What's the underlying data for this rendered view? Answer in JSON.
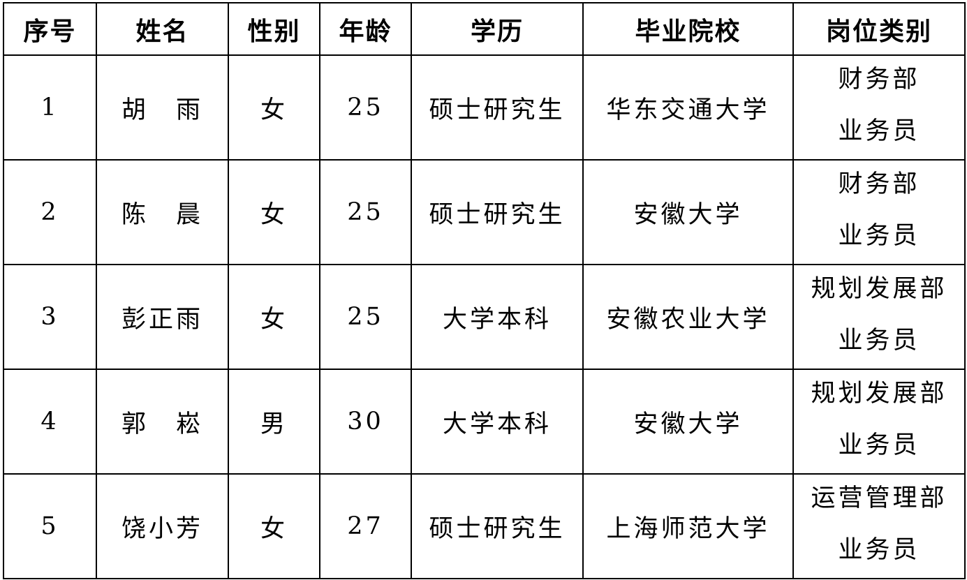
{
  "table": {
    "headers": [
      "序号",
      "姓名",
      "性别",
      "年龄",
      "学历",
      "毕业院校",
      "岗位类别"
    ],
    "rows": [
      {
        "no": "1",
        "name": "胡　雨",
        "gender": "女",
        "age": "25",
        "education": "硕士研究生",
        "school": "华东交通大学",
        "job": [
          "财务部",
          "业务员"
        ]
      },
      {
        "no": "2",
        "name": "陈　晨",
        "gender": "女",
        "age": "25",
        "education": "硕士研究生",
        "school": "安徽大学",
        "job": [
          "财务部",
          "业务员"
        ]
      },
      {
        "no": "3",
        "name": "彭正雨",
        "gender": "女",
        "age": "25",
        "education": "大学本科",
        "school": "安徽农业大学",
        "job": [
          "规划发展部",
          "业务员"
        ]
      },
      {
        "no": "4",
        "name": "郭　崧",
        "gender": "男",
        "age": "30",
        "education": "大学本科",
        "school": "安徽大学",
        "job": [
          "规划发展部",
          "业务员"
        ]
      },
      {
        "no": "5",
        "name": "饶小芳",
        "gender": "女",
        "age": "27",
        "education": "硕士研究生",
        "school": "上海师范大学",
        "job": [
          "运营管理部",
          "业务员"
        ]
      }
    ]
  }
}
